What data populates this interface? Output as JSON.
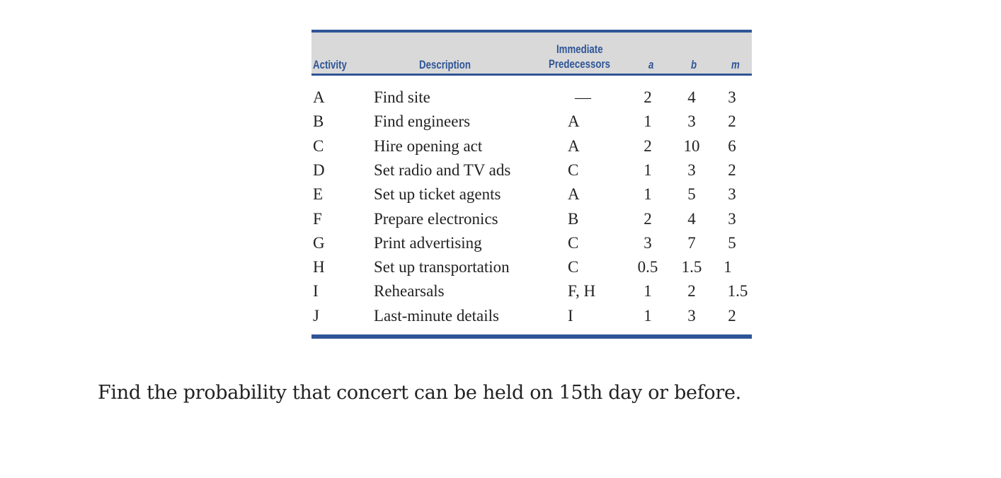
{
  "table": {
    "headers": {
      "activity": "Activity",
      "description": "Description",
      "predecessors_line1": "Immediate",
      "predecessors_line2": "Predecessors",
      "a": "a",
      "b": "b",
      "m": "m"
    },
    "rows": [
      {
        "activity": "A",
        "description": "Find site",
        "predecessors": "—",
        "a": "2",
        "b": "4",
        "m": "3"
      },
      {
        "activity": "B",
        "description": "Find engineers",
        "predecessors": "A",
        "a": "1",
        "b": "3",
        "m": "2"
      },
      {
        "activity": "C",
        "description": "Hire opening act",
        "predecessors": "A",
        "a": "2",
        "b": "10",
        "m": "6"
      },
      {
        "activity": "D",
        "description": "Set radio and TV ads",
        "predecessors": "C",
        "a": "1",
        "b": "3",
        "m": "2"
      },
      {
        "activity": "E",
        "description": "Set up ticket agents",
        "predecessors": "A",
        "a": "1",
        "b": "5",
        "m": "3"
      },
      {
        "activity": "F",
        "description": "Prepare electronics",
        "predecessors": "B",
        "a": "2",
        "b": "4",
        "m": "3"
      },
      {
        "activity": "G",
        "description": "Print advertising",
        "predecessors": "C",
        "a": "3",
        "b": "7",
        "m": "5"
      },
      {
        "activity": "H",
        "description": "Set up transportation",
        "predecessors": "C",
        "a": "0.5",
        "b": "1.5",
        "m": "1"
      },
      {
        "activity": "I",
        "description": "Rehearsals",
        "predecessors": "F, H",
        "a": "1",
        "b": "2",
        "m": "1.5"
      },
      {
        "activity": "J",
        "description": "Last-minute details",
        "predecessors": "I",
        "a": "1",
        "b": "3",
        "m": "2"
      }
    ]
  },
  "question": "Find the probability that concert can be held on 15th day or before.",
  "colors": {
    "accent": "#2f5597",
    "header_bg": "#d9d9d9"
  }
}
